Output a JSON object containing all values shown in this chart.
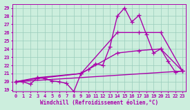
{
  "title": "",
  "xlabel": "Windchill (Refroidissement éolien,°C)",
  "ylabel": "",
  "xlim": [
    -0.5,
    23.5
  ],
  "ylim": [
    18.8,
    29.5
  ],
  "yticks": [
    19,
    20,
    21,
    22,
    23,
    24,
    25,
    26,
    27,
    28,
    29
  ],
  "xticks": [
    0,
    1,
    2,
    3,
    4,
    5,
    6,
    7,
    8,
    9,
    10,
    11,
    12,
    13,
    14,
    15,
    16,
    17,
    18,
    19,
    20,
    21,
    22,
    23
  ],
  "bg_color": "#cceedd",
  "grid_color": "#99ccbb",
  "line_color": "#aa00aa",
  "line_width": 1.0,
  "marker": "+",
  "marker_size": 4,
  "series": [
    {
      "x": [
        0,
        1,
        2,
        3,
        4,
        5,
        6,
        7,
        8,
        9,
        10,
        11,
        12,
        13,
        14,
        15,
        16,
        17,
        18,
        19,
        20,
        21,
        22,
        23
      ],
      "y": [
        20.0,
        20.0,
        19.7,
        20.5,
        20.4,
        20.1,
        20.0,
        19.8,
        18.8,
        21.0,
        21.5,
        22.2,
        22.0,
        24.3,
        28.0,
        29.0,
        27.3,
        28.1,
        25.8,
        23.5,
        24.0,
        22.5,
        21.2,
        21.3
      ]
    },
    {
      "x": [
        0,
        3,
        9,
        14,
        17,
        20,
        23
      ],
      "y": [
        20.0,
        20.5,
        21.0,
        26.0,
        26.0,
        26.0,
        21.3
      ]
    },
    {
      "x": [
        0,
        3,
        9,
        14,
        17,
        20,
        23
      ],
      "y": [
        20.0,
        20.4,
        21.0,
        23.5,
        23.8,
        24.0,
        21.3
      ]
    },
    {
      "x": [
        0,
        23
      ],
      "y": [
        20.0,
        21.3
      ]
    }
  ]
}
